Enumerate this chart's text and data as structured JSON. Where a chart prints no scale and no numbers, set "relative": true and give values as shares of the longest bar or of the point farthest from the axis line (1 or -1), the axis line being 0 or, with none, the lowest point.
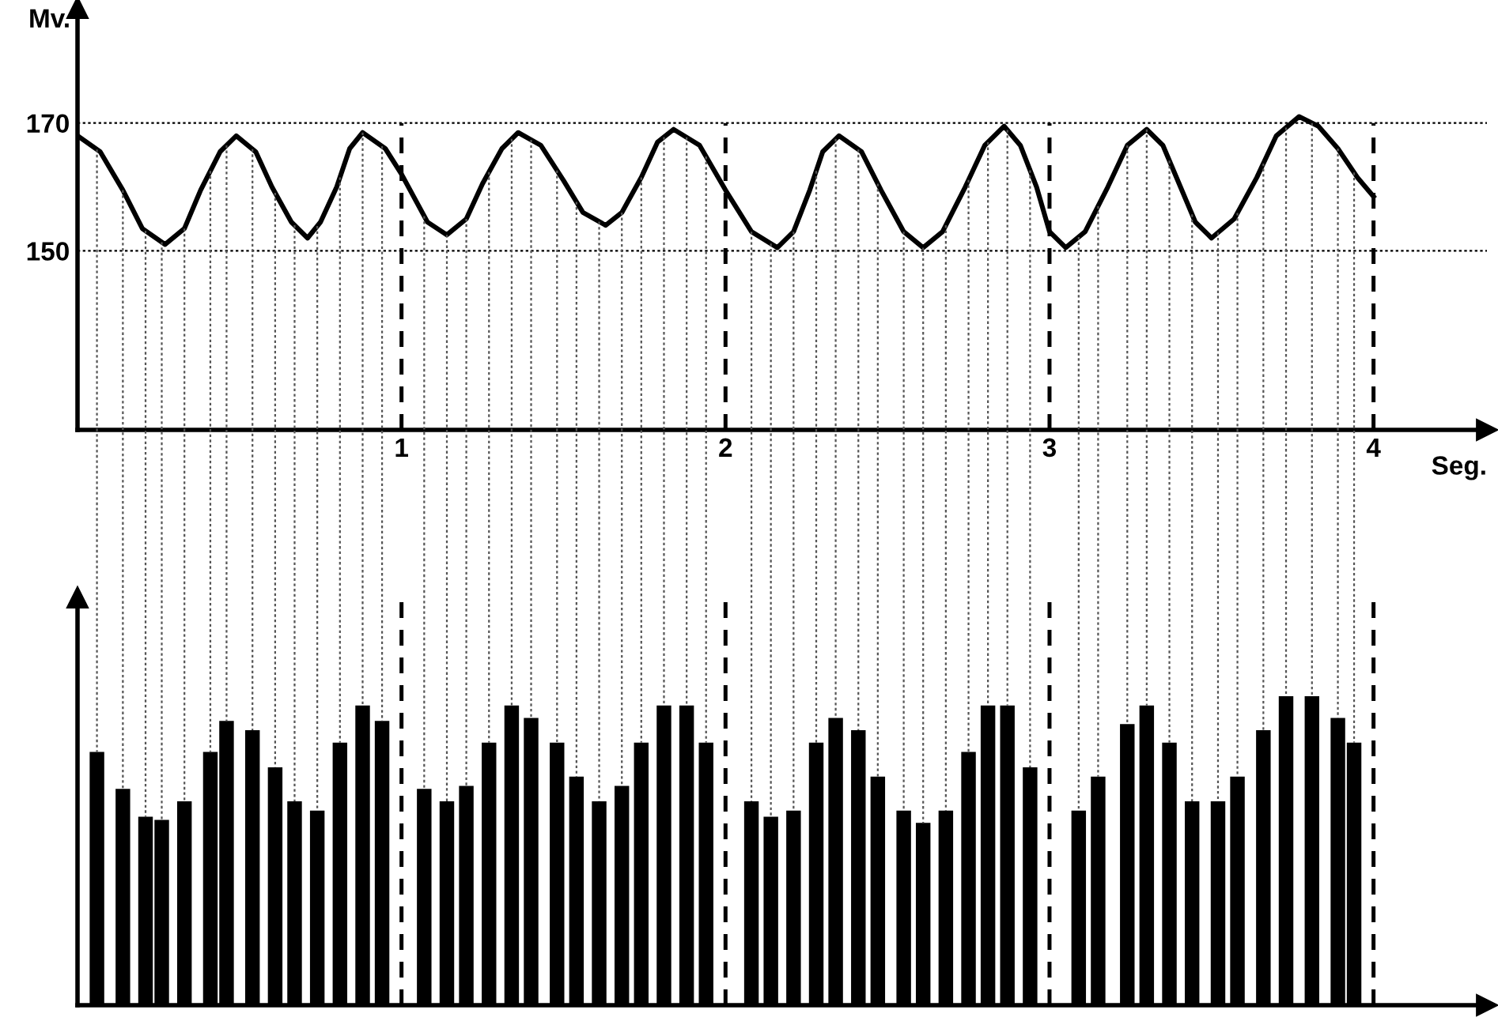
{
  "chart_data": [
    {
      "type": "line",
      "xlabel": "Seg.",
      "ylabel": "Mv.",
      "x": [
        0,
        0.07,
        0.14,
        0.2,
        0.27,
        0.33,
        0.38,
        0.44,
        0.49,
        0.55,
        0.6,
        0.66,
        0.71,
        0.75,
        0.8,
        0.84,
        0.88,
        0.95,
        1,
        1.08,
        1.14,
        1.2,
        1.25,
        1.31,
        1.36,
        1.43,
        1.5,
        1.56,
        1.63,
        1.68,
        1.74,
        1.79,
        1.84,
        1.92,
        2,
        2.08,
        2.16,
        2.21,
        2.26,
        2.3,
        2.35,
        2.42,
        2.48,
        2.55,
        2.61,
        2.67,
        2.74,
        2.8,
        2.86,
        2.91,
        2.96,
        3,
        3.05,
        3.11,
        3.18,
        3.24,
        3.3,
        3.35,
        3.4,
        3.45,
        3.5,
        3.57,
        3.64,
        3.7,
        3.77,
        3.83,
        3.89,
        3.95,
        4
      ],
      "series": [
        {
          "color": "#000000",
          "values": [
            168,
            165.5,
            159.5,
            153.5,
            151,
            153.5,
            159.5,
            165.5,
            168,
            165.5,
            160,
            154.5,
            152,
            154.5,
            160,
            166,
            168.5,
            166,
            162,
            154.5,
            152.5,
            155,
            160.5,
            166,
            168.5,
            166.5,
            161,
            156,
            154,
            156,
            161.5,
            167,
            169,
            166.5,
            159.5,
            153,
            150.5,
            153,
            159.5,
            165.5,
            168,
            165.5,
            159.5,
            153,
            150.5,
            153,
            160,
            166.5,
            169.5,
            166.5,
            160,
            153,
            150.5,
            153,
            160,
            166.5,
            169,
            166.5,
            160.5,
            154.5,
            152,
            155,
            161.5,
            168,
            171,
            169.5,
            166,
            161.5,
            158.5
          ]
        }
      ],
      "xlim": [
        0,
        4.35
      ],
      "ylim": [
        122,
        188
      ],
      "xticks": [
        1,
        2,
        3,
        4
      ],
      "yticks": [
        150,
        170
      ],
      "ref_lines": [
        {
          "axis": "x",
          "value": 1,
          "line_style": "dashed"
        },
        {
          "axis": "x",
          "value": 2,
          "line_style": "dashed"
        },
        {
          "axis": "x",
          "value": 3,
          "line_style": "dashed"
        },
        {
          "axis": "x",
          "value": 4,
          "line_style": "dashed"
        },
        {
          "axis": "y",
          "value": 150,
          "line_style": "dotted"
        },
        {
          "axis": "y",
          "value": 170,
          "line_style": "dotted"
        }
      ],
      "grid": false,
      "legend": false,
      "marker": "none",
      "line_style": "solid"
    },
    {
      "type": "bar",
      "relative": true,
      "xlim": [
        0,
        4.35
      ],
      "x": [
        0.06,
        0.14,
        0.21,
        0.26,
        0.33,
        0.41,
        0.46,
        0.54,
        0.61,
        0.67,
        0.74,
        0.81,
        0.88,
        0.94,
        1.07,
        1.14,
        1.2,
        1.27,
        1.34,
        1.4,
        1.48,
        1.54,
        1.61,
        1.68,
        1.74,
        1.81,
        1.88,
        1.94,
        2.08,
        2.14,
        2.21,
        2.28,
        2.34,
        2.41,
        2.47,
        2.55,
        2.61,
        2.68,
        2.75,
        2.81,
        2.87,
        2.94,
        3.09,
        3.15,
        3.24,
        3.3,
        3.37,
        3.44,
        3.52,
        3.58,
        3.66,
        3.73,
        3.81,
        3.89,
        3.94
      ],
      "series": [
        {
          "color": "#000000",
          "values": [
            0.82,
            0.7,
            0.61,
            0.6,
            0.66,
            0.82,
            0.92,
            0.89,
            0.77,
            0.66,
            0.63,
            0.85,
            0.97,
            0.92,
            0.7,
            0.66,
            0.71,
            0.85,
            0.97,
            0.93,
            0.85,
            0.74,
            0.66,
            0.71,
            0.85,
            0.97,
            0.97,
            0.85,
            0.66,
            0.61,
            0.63,
            0.85,
            0.93,
            0.89,
            0.74,
            0.63,
            0.59,
            0.63,
            0.82,
            0.97,
            0.97,
            0.77,
            0.63,
            0.74,
            0.91,
            0.97,
            0.85,
            0.66,
            0.66,
            0.74,
            0.89,
            1,
            1,
            0.93,
            0.85
          ]
        }
      ],
      "ref_lines": [
        {
          "axis": "x",
          "value": 1,
          "line_style": "dashed"
        },
        {
          "axis": "x",
          "value": 2,
          "line_style": "dashed"
        },
        {
          "axis": "x",
          "value": 3,
          "line_style": "dashed"
        },
        {
          "axis": "x",
          "value": 4,
          "line_style": "dashed"
        }
      ],
      "grid": false,
      "legend": false
    }
  ]
}
